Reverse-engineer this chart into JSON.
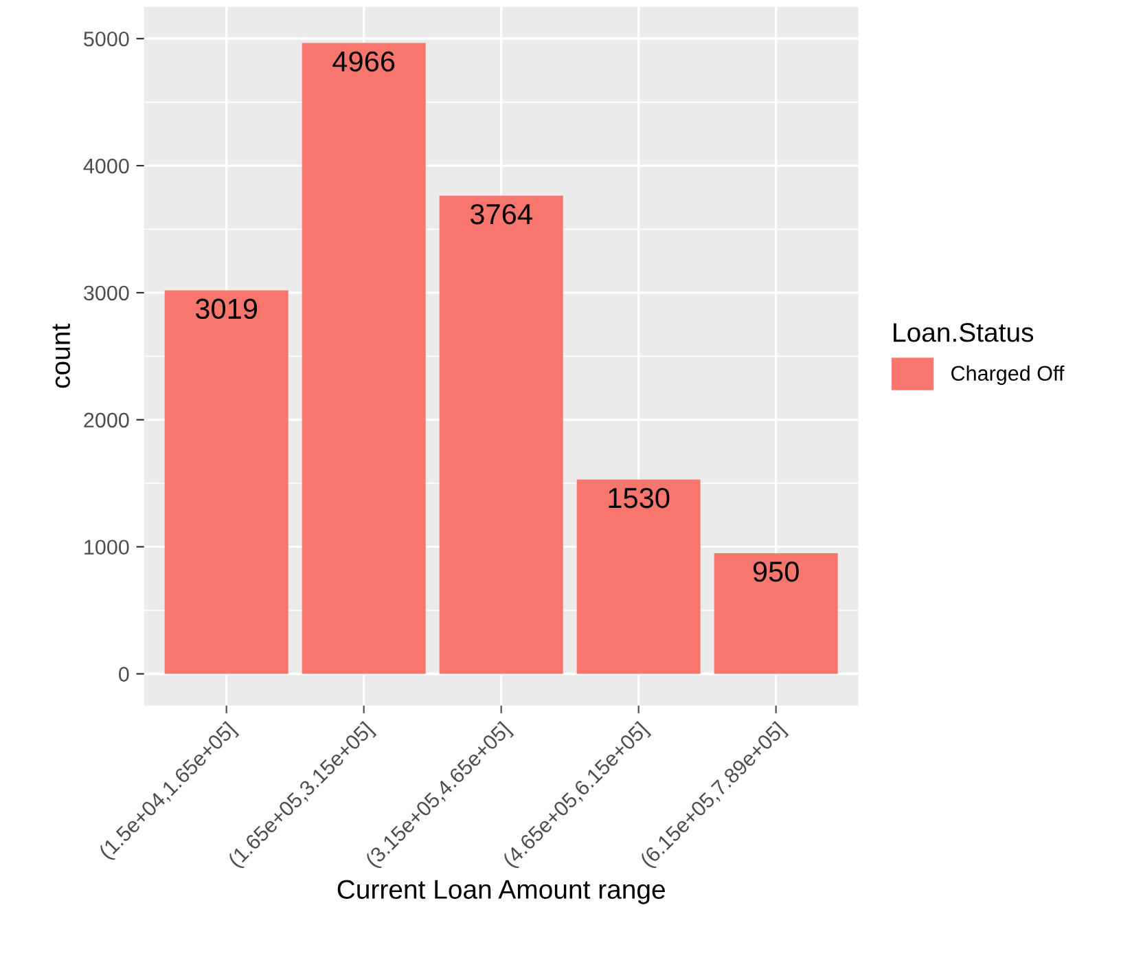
{
  "chart_data": {
    "type": "bar",
    "xlabel": "Current Loan Amount range",
    "ylabel": "count",
    "legend_title": "Loan.Status",
    "categories": [
      "(1.5e+04,1.65e+05]",
      "(1.65e+05,3.15e+05]",
      "(3.15e+05,4.65e+05]",
      "(4.65e+05,6.15e+05]",
      "(6.15e+05,7.89e+05]"
    ],
    "series": [
      {
        "name": "Charged Off",
        "color": "#f8766d",
        "values": [
          3019,
          4966,
          3764,
          1530,
          950
        ]
      }
    ],
    "ylim": [
      -250,
      5250
    ],
    "yticks": [
      0,
      1000,
      2000,
      3000,
      4000,
      5000
    ],
    "grid": true,
    "legend": "right",
    "data_labels": true
  }
}
